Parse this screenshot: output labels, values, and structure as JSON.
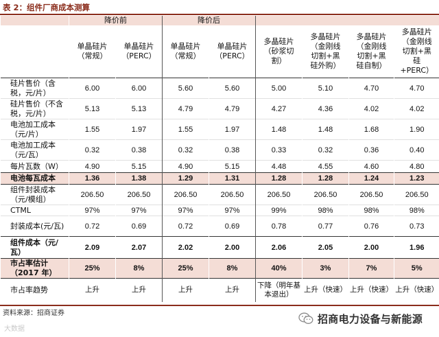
{
  "title": "表 2：组件厂商成本测算",
  "groups": [
    "降价前",
    "降价后"
  ],
  "columns": [
    "单晶硅片\n（常规）",
    "单晶硅片\n（PERC）",
    "单晶硅片\n（常规）",
    "单晶硅片\n（PERC）",
    "多晶硅片\n（砂浆切\n割）",
    "多晶硅片\n（金刚线\n切割+黑\n硅外购）",
    "多晶硅片\n（金刚线\n切割+黑\n硅自制）",
    "多晶硅片\n（金刚线\n切割+黑\n硅\n+PERC）"
  ],
  "rows": [
    {
      "label": "硅片售价（含税，元/片）",
      "values": [
        "6.00",
        "6.00",
        "5.60",
        "5.60",
        "5.00",
        "5.10",
        "4.70",
        "4.70"
      ]
    },
    {
      "label": "硅片售价（不含税，元/片）",
      "values": [
        "5.13",
        "5.13",
        "4.79",
        "4.79",
        "4.27",
        "4.36",
        "4.02",
        "4.02"
      ]
    },
    {
      "label": "电池加工成本（元/片）",
      "values": [
        "1.55",
        "1.97",
        "1.55",
        "1.97",
        "1.48",
        "1.48",
        "1.68",
        "1.90"
      ]
    },
    {
      "label": "电池加工成本（元/瓦）",
      "values": [
        "0.32",
        "0.38",
        "0.32",
        "0.38",
        "0.33",
        "0.32",
        "0.36",
        "0.40"
      ]
    },
    {
      "label": "每片瓦数（W）",
      "values": [
        "4.90",
        "5.15",
        "4.90",
        "5.15",
        "4.48",
        "4.55",
        "4.60",
        "4.80"
      ]
    },
    {
      "label": "电池每瓦成本",
      "values": [
        "1.36",
        "1.38",
        "1.29",
        "1.31",
        "1.28",
        "1.28",
        "1.24",
        "1.23"
      ]
    },
    {
      "label": "组件封装成本（元/模组）",
      "values": [
        "206.50",
        "206.50",
        "206.50",
        "206.50",
        "206.50",
        "206.50",
        "206.50",
        "206.50"
      ]
    },
    {
      "label": "CTML",
      "values": [
        "97%",
        "97%",
        "97%",
        "97%",
        "99%",
        "98%",
        "98%",
        "98%"
      ]
    },
    {
      "label": "封装成本(元/瓦)",
      "values": [
        "0.72",
        "0.69",
        "0.72",
        "0.69",
        "0.78",
        "0.77",
        "0.76",
        "0.73"
      ]
    },
    {
      "label": "组件成本（元/瓦）",
      "values": [
        "2.09",
        "2.07",
        "2.02",
        "2.00",
        "2.06",
        "2.05",
        "2.00",
        "1.96"
      ]
    },
    {
      "label": "市占率估计（2017 年）",
      "values": [
        "25%",
        "8%",
        "25%",
        "8%",
        "40%",
        "3%",
        "7%",
        "5%"
      ]
    },
    {
      "label": "市占率趋势",
      "values": [
        "上升",
        "上升",
        "上升",
        "上升",
        "下降（明年基本退出）",
        "上升（快速）",
        "上升（快速）",
        "上升（快速）"
      ]
    }
  ],
  "source": "资料来源：招商证券",
  "watermark_left": "大数据",
  "watermark_right": "招商电力设备与新能源"
}
